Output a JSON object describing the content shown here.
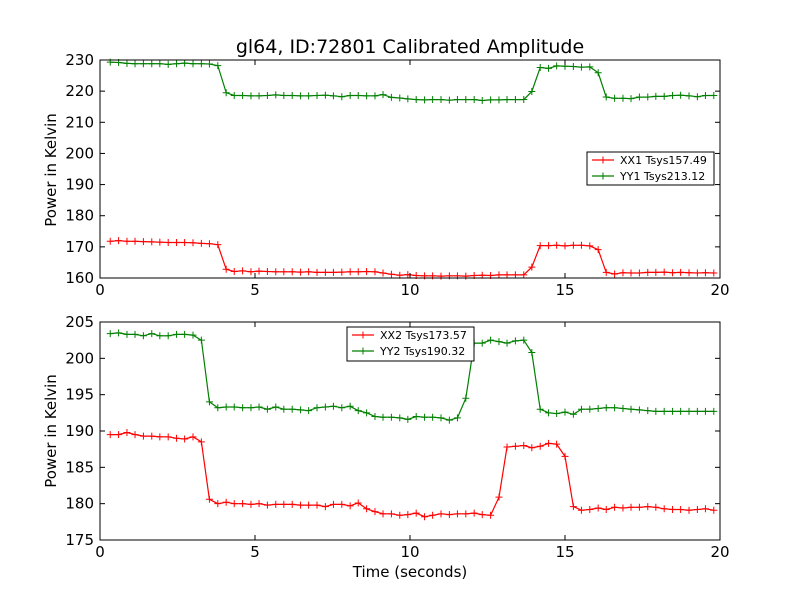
{
  "chart_data": [
    {
      "type": "line",
      "title": "gl64, ID:72801 Calibrated Amplitude",
      "xlabel": "",
      "ylabel": "Power in Kelvin",
      "xlim": [
        0,
        20
      ],
      "ylim": [
        160,
        230
      ],
      "xticks": [
        0,
        5,
        10,
        15,
        20
      ],
      "yticks": [
        160,
        170,
        180,
        190,
        200,
        210,
        220,
        230
      ],
      "grid": false,
      "legend_position": "center-right",
      "marker": "+",
      "series": [
        {
          "name": "XX1 Tsys157.49",
          "color": "#ff0000",
          "x": [
            0.33,
            0.6,
            0.87,
            1.13,
            1.4,
            1.67,
            1.93,
            2.2,
            2.47,
            2.73,
            3.0,
            3.27,
            3.53,
            3.8,
            4.07,
            4.33,
            4.6,
            4.87,
            5.13,
            5.4,
            5.67,
            5.93,
            6.2,
            6.47,
            6.73,
            7.0,
            7.27,
            7.53,
            7.8,
            8.07,
            8.33,
            8.6,
            8.87,
            9.13,
            9.4,
            9.67,
            9.93,
            10.2,
            10.47,
            10.73,
            11.0,
            11.27,
            11.53,
            11.8,
            12.07,
            12.33,
            12.6,
            12.87,
            13.13,
            13.4,
            13.67,
            13.93,
            14.2,
            14.47,
            14.73,
            15.0,
            15.27,
            15.53,
            15.8,
            16.07,
            16.33,
            16.6,
            16.87,
            17.13,
            17.4,
            17.67,
            17.93,
            18.2,
            18.47,
            18.73,
            19.0,
            19.27,
            19.53,
            19.8
          ],
          "y": [
            171.8,
            172.0,
            171.8,
            171.8,
            171.7,
            171.6,
            171.5,
            171.4,
            171.4,
            171.4,
            171.3,
            171.1,
            171.0,
            170.7,
            162.8,
            162.1,
            162.3,
            162.0,
            162.2,
            162.1,
            162.0,
            162.0,
            162.0,
            161.9,
            162.0,
            161.8,
            161.8,
            161.8,
            161.9,
            162.0,
            162.0,
            162.1,
            162.0,
            161.6,
            161.2,
            160.9,
            161.1,
            160.8,
            160.7,
            160.7,
            160.6,
            160.7,
            160.7,
            160.6,
            160.8,
            160.9,
            160.8,
            161.0,
            161.0,
            161.0,
            161.0,
            163.5,
            170.4,
            170.4,
            170.5,
            170.3,
            170.5,
            170.5,
            170.3,
            169.1,
            161.8,
            161.3,
            161.7,
            161.6,
            161.6,
            161.8,
            161.8,
            161.9,
            161.7,
            161.8,
            161.7,
            161.6,
            161.7,
            161.6
          ]
        },
        {
          "name": "YY1 Tsys213.12",
          "color": "#008000",
          "x": [
            0.33,
            0.6,
            0.87,
            1.13,
            1.4,
            1.67,
            1.93,
            2.2,
            2.47,
            2.73,
            3.0,
            3.27,
            3.53,
            3.8,
            4.07,
            4.33,
            4.6,
            4.87,
            5.13,
            5.4,
            5.67,
            5.93,
            6.2,
            6.47,
            6.73,
            7.0,
            7.27,
            7.53,
            7.8,
            8.07,
            8.33,
            8.6,
            8.87,
            9.13,
            9.4,
            9.67,
            9.93,
            10.2,
            10.47,
            10.73,
            11.0,
            11.27,
            11.53,
            11.8,
            12.07,
            12.33,
            12.6,
            12.87,
            13.13,
            13.4,
            13.67,
            13.93,
            14.2,
            14.47,
            14.73,
            15.0,
            15.27,
            15.53,
            15.8,
            16.07,
            16.33,
            16.6,
            16.87,
            17.13,
            17.4,
            17.67,
            17.93,
            18.2,
            18.47,
            18.73,
            19.0,
            19.27,
            19.53,
            19.8
          ],
          "y": [
            229.3,
            229.2,
            228.9,
            228.8,
            228.8,
            228.8,
            228.8,
            228.6,
            228.8,
            229.0,
            228.8,
            228.8,
            228.7,
            228.2,
            219.5,
            218.6,
            218.6,
            218.5,
            218.5,
            218.6,
            218.8,
            218.6,
            218.6,
            218.5,
            218.5,
            218.6,
            218.7,
            218.5,
            218.2,
            218.6,
            218.6,
            218.5,
            218.5,
            218.9,
            218.0,
            217.8,
            217.5,
            217.3,
            217.2,
            217.3,
            217.3,
            217.1,
            217.3,
            217.3,
            217.3,
            217.0,
            217.2,
            217.2,
            217.3,
            217.3,
            217.3,
            219.9,
            227.6,
            227.3,
            228.1,
            228.0,
            227.9,
            227.7,
            227.8,
            225.9,
            218.1,
            217.7,
            217.7,
            217.6,
            218.1,
            218.1,
            218.3,
            218.3,
            218.6,
            218.7,
            218.5,
            218.2,
            218.6,
            218.6
          ]
        }
      ]
    },
    {
      "type": "line",
      "title": "",
      "xlabel": "Time (seconds)",
      "ylabel": "Power in Kelvin",
      "xlim": [
        0,
        20
      ],
      "ylim": [
        175,
        205
      ],
      "xticks": [
        0,
        5,
        10,
        15,
        20
      ],
      "yticks": [
        175,
        180,
        185,
        190,
        195,
        200,
        205
      ],
      "grid": false,
      "legend_position": "top-center",
      "marker": "+",
      "series": [
        {
          "name": "XX2 Tsys173.57",
          "color": "#ff0000",
          "x": [
            0.33,
            0.6,
            0.87,
            1.13,
            1.4,
            1.67,
            1.93,
            2.2,
            2.47,
            2.73,
            3.0,
            3.27,
            3.53,
            3.8,
            4.07,
            4.33,
            4.6,
            4.87,
            5.13,
            5.4,
            5.67,
            5.93,
            6.2,
            6.47,
            6.73,
            7.0,
            7.27,
            7.53,
            7.8,
            8.07,
            8.33,
            8.6,
            8.87,
            9.13,
            9.4,
            9.67,
            9.93,
            10.2,
            10.47,
            10.73,
            11.0,
            11.27,
            11.53,
            11.8,
            12.07,
            12.33,
            12.6,
            12.87,
            13.13,
            13.4,
            13.67,
            13.93,
            14.2,
            14.47,
            14.73,
            15.0,
            15.27,
            15.53,
            15.8,
            16.07,
            16.33,
            16.6,
            16.87,
            17.13,
            17.4,
            17.67,
            17.93,
            18.2,
            18.47,
            18.73,
            19.0,
            19.27,
            19.53,
            19.8
          ],
          "y": [
            189.5,
            189.5,
            189.8,
            189.5,
            189.3,
            189.3,
            189.2,
            189.2,
            189.0,
            188.9,
            189.2,
            188.5,
            180.6,
            180.0,
            180.2,
            180.0,
            180.0,
            179.9,
            180.0,
            179.8,
            179.9,
            179.9,
            179.9,
            179.8,
            179.8,
            179.8,
            179.6,
            179.9,
            179.9,
            179.7,
            180.1,
            179.3,
            178.9,
            178.6,
            178.6,
            178.4,
            178.5,
            178.7,
            178.2,
            178.4,
            178.6,
            178.5,
            178.6,
            178.6,
            178.7,
            178.5,
            178.4,
            180.9,
            187.8,
            187.9,
            188.0,
            187.7,
            187.9,
            188.3,
            188.2,
            186.5,
            179.6,
            179.1,
            179.2,
            179.4,
            179.2,
            179.5,
            179.4,
            179.5,
            179.5,
            179.6,
            179.5,
            179.3,
            179.2,
            179.2,
            179.1,
            179.2,
            179.3,
            179.1
          ],
          "trim": 0
        },
        {
          "name": "YY2 Tsys190.32",
          "color": "#008000",
          "x": [
            0.33,
            0.6,
            0.87,
            1.13,
            1.4,
            1.67,
            1.93,
            2.2,
            2.47,
            2.73,
            3.0,
            3.27,
            3.53,
            3.8,
            4.07,
            4.33,
            4.6,
            4.87,
            5.13,
            5.4,
            5.67,
            5.93,
            6.2,
            6.47,
            6.73,
            7.0,
            7.27,
            7.53,
            7.8,
            8.07,
            8.33,
            8.6,
            8.87,
            9.13,
            9.4,
            9.67,
            9.93,
            10.2,
            10.47,
            10.73,
            11.0,
            11.27,
            11.53,
            11.8,
            12.07,
            12.33,
            12.6,
            12.87,
            13.13,
            13.4,
            13.67,
            13.93,
            14.2,
            14.47,
            14.73,
            15.0,
            15.27,
            15.53,
            15.8,
            16.07,
            16.33,
            16.6,
            16.87,
            17.13,
            17.4,
            17.67,
            17.93,
            18.2,
            18.47,
            18.73,
            19.0,
            19.27,
            19.53,
            19.8
          ],
          "y": [
            203.4,
            203.5,
            203.3,
            203.3,
            203.1,
            203.4,
            203.1,
            203.1,
            203.3,
            203.3,
            203.2,
            202.5,
            194.0,
            193.2,
            193.3,
            193.3,
            193.2,
            193.2,
            193.3,
            193.0,
            193.3,
            193.0,
            193.0,
            192.9,
            192.8,
            193.2,
            193.3,
            193.4,
            193.2,
            193.4,
            192.8,
            192.5,
            192.0,
            191.9,
            191.9,
            191.8,
            191.6,
            192.0,
            191.9,
            191.9,
            191.8,
            191.5,
            191.8,
            194.5,
            202.1,
            202.1,
            202.5,
            202.3,
            202.1,
            202.4,
            202.5,
            200.8,
            193.0,
            192.5,
            192.4,
            192.6,
            192.3,
            193.0,
            193.0,
            193.1,
            193.2,
            193.2,
            193.1,
            193.0,
            192.9,
            192.8,
            192.7,
            192.7,
            192.7,
            192.7,
            192.7,
            192.7,
            192.7,
            192.7
          ],
          "trim": 0
        }
      ]
    }
  ]
}
